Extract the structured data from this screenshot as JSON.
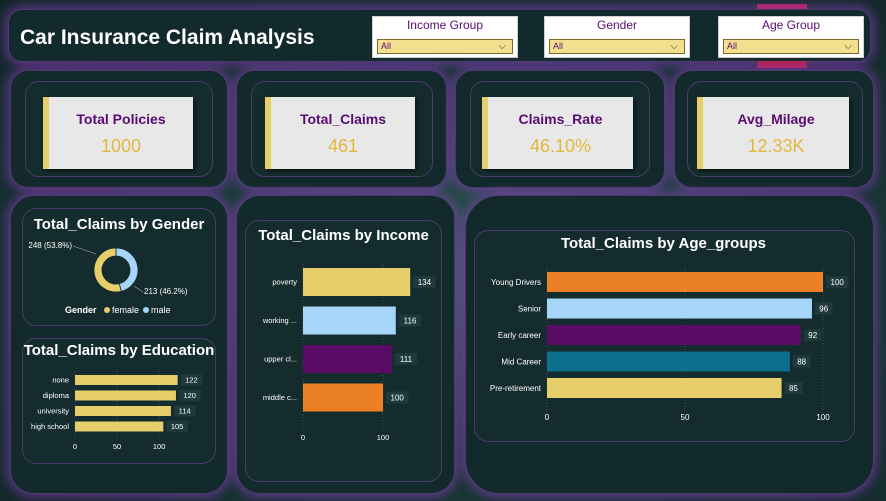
{
  "header": {
    "title": "Car Insurance Claim Analysis"
  },
  "slicers": [
    {
      "label": "Income Group",
      "value": "All"
    },
    {
      "label": "Gender",
      "value": "All"
    },
    {
      "label": "Age Group",
      "value": "All"
    }
  ],
  "kpis": [
    {
      "label": "Total Policies",
      "value": "1000"
    },
    {
      "label": "Total_Claims",
      "value": "461"
    },
    {
      "label": "Claims_Rate",
      "value": "46.10%"
    },
    {
      "label": "Avg_Milage",
      "value": "12.33K"
    }
  ],
  "colors": {
    "yellow": "#e6cf6b",
    "lightblue": "#a6d5fa",
    "purple": "#5a0b63",
    "orange": "#ec8025",
    "teal": "#0c6f8e"
  },
  "chart_data": [
    {
      "type": "pie",
      "title": "Total_Claims by Gender",
      "categories": [
        "female",
        "male"
      ],
      "values": [
        248,
        213
      ],
      "data_labels": [
        "248 (53.8%)",
        "213 (46.2%)"
      ],
      "legend_title": "Gender",
      "legend_position": "bottom"
    },
    {
      "type": "bar",
      "title": "Total_Claims by Education",
      "categories": [
        "none",
        "diploma",
        "university",
        "high school"
      ],
      "values": [
        122,
        120,
        114,
        105
      ],
      "ticks": [
        "0",
        "50",
        "100"
      ],
      "xlim": [
        0,
        145
      ]
    },
    {
      "type": "bar",
      "title": "Total_Claims by Income",
      "categories": [
        "poverty",
        "working ...",
        "upper cl...",
        "middle c..."
      ],
      "values": [
        134,
        116,
        111,
        100
      ],
      "ticks": [
        "0",
        "100"
      ],
      "xlim": [
        0,
        155
      ]
    },
    {
      "type": "bar",
      "title": "Total_Claims by Age_groups",
      "categories": [
        "Young Drivers",
        "Senior",
        "Early career",
        "Mid Career",
        "Pre-retirement"
      ],
      "values": [
        100,
        96,
        92,
        88,
        85
      ],
      "ticks": [
        "0",
        "50",
        "100"
      ],
      "xlim": [
        0,
        100
      ]
    }
  ]
}
